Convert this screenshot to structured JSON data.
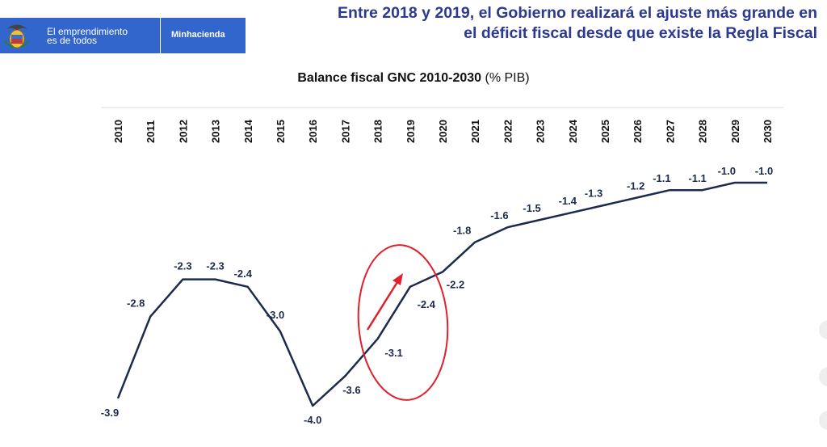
{
  "header": {
    "brand_line1": "El emprendimiento",
    "brand_line2": "es de todos",
    "brand_ministry": "Minhacienda",
    "headline_line1": "Entre 2018 y 2019, el Gobierno realizará el ajuste más grande en",
    "headline_line2": "el déficit fiscal desde que existe la Regla Fiscal"
  },
  "colors": {
    "brand_bar": "#3366cc",
    "headline": "#2b3990",
    "series_line": "#1d2a4d",
    "highlight": "#e0202a"
  },
  "chart_data": {
    "type": "line",
    "title": "Balance fiscal GNC 2010-2030",
    "title_unit": "(% PIB)",
    "xlabel": "",
    "ylabel": "",
    "ylim": [
      -4.0,
      -1.0
    ],
    "x": [
      "2010",
      "2011",
      "2012",
      "2013",
      "2014",
      "2015",
      "2016",
      "2017",
      "2018",
      "2019",
      "2020",
      "2021",
      "2022",
      "2023",
      "2024",
      "2025",
      "2026",
      "2027",
      "2028",
      "2029",
      "2030"
    ],
    "values": [
      -3.9,
      -2.8,
      -2.3,
      -2.3,
      -2.4,
      -3.0,
      -4.0,
      -3.6,
      -3.1,
      -2.4,
      -2.2,
      -1.8,
      -1.6,
      -1.5,
      -1.4,
      -1.3,
      -1.2,
      -1.1,
      -1.1,
      -1.0,
      -1.0
    ],
    "data_labels": [
      "-3.9",
      "-2.8",
      "-2.3",
      "-2.3",
      "-2.4",
      "-3.0",
      "-4.0",
      "-3.6",
      "-3.1",
      "-2.4",
      "-2.2",
      "-1.8",
      "-1.6",
      "-1.5",
      "-1.4",
      "-1.3",
      "-1.2",
      "-1.1",
      "-1.1",
      "-1.0",
      "-1.0"
    ],
    "x_axis_position": "top",
    "grid": false,
    "legend": "none",
    "annotations": [
      {
        "type": "ellipse-with-arrow",
        "spans": [
          "2018",
          "2019"
        ],
        "color": "#e0202a"
      }
    ]
  }
}
